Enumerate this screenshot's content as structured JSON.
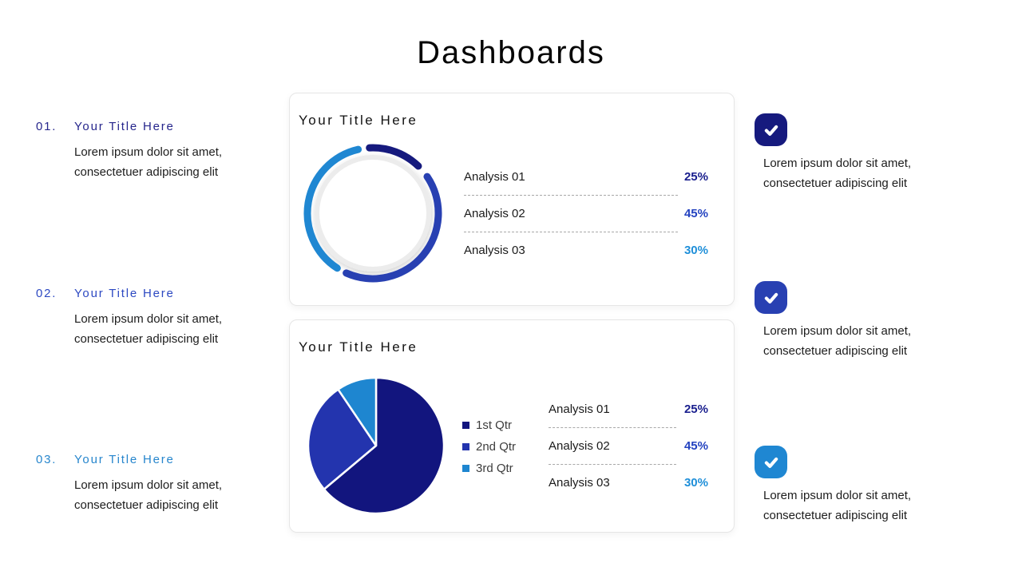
{
  "title": "Dashboards",
  "theme": {
    "navy": "#161a7e",
    "royal": "#2840b2",
    "light_blue": "#1f87d2",
    "body_text": "#1d1d1d",
    "muted_text": "#3d3d3d",
    "card_border": "#e6e6e6",
    "dash_line": "#a8a8a8"
  },
  "left_items": [
    {
      "number": "01.",
      "title": "Your Title Here",
      "color": "#26268c",
      "text": "Lorem ipsum dolor sit amet,\nconsectetuer adipiscing elit"
    },
    {
      "number": "02.",
      "title": "Your Title Here",
      "color": "#2d49c2",
      "text": "Lorem ipsum dolor sit amet,\nconsectetuer adipiscing elit"
    },
    {
      "number": "03.",
      "title": "Your Title Here",
      "color": "#2786cd",
      "text": "Lorem ipsum dolor sit amet,\nconsectetuer adipiscing elit"
    }
  ],
  "cards": [
    {
      "title": "Your Title Here",
      "rows": [
        {
          "label": "Analysis 01",
          "value": "25%",
          "color": "#1a1f8e"
        },
        {
          "label": "Analysis 02",
          "value": "45%",
          "color": "#2443c0"
        },
        {
          "label": "Analysis 03",
          "value": "30%",
          "color": "#1f8fd9"
        }
      ]
    },
    {
      "title": "Your Title Here",
      "rows": [
        {
          "label": "Analysis 01",
          "value": "25%",
          "color": "#1a1f8e"
        },
        {
          "label": "Analysis 02",
          "value": "45%",
          "color": "#2443c0"
        },
        {
          "label": "Analysis 03",
          "value": "30%",
          "color": "#1f8fd9"
        }
      ]
    }
  ],
  "right_items": [
    {
      "icon": "check-icon",
      "badge_color": "#161a7e",
      "text": "Lorem ipsum dolor sit amet,\nconsectetuer adipiscing elit"
    },
    {
      "icon": "check-icon",
      "badge_color": "#2840b2",
      "text": "Lorem ipsum dolor sit amet,\nconsectetuer adipiscing elit"
    },
    {
      "icon": "check-icon",
      "badge_color": "#1f87d2",
      "text": "Lorem ipsum dolor sit amet,\nconsectetuer adipiscing elit"
    }
  ],
  "chart_data": [
    {
      "type": "donut",
      "title": "Your Title Here",
      "legend_position": "none",
      "ring_radius": 82,
      "ring_thickness": 9,
      "segments": [
        {
          "label": "Analysis 01",
          "value_pct": 25,
          "color": "#161a7e",
          "arc_deg": [
            -3,
            44
          ]
        },
        {
          "label": "Analysis 02",
          "value_pct": 45,
          "color": "#2840b2",
          "arc_deg": [
            56,
            204
          ]
        },
        {
          "label": "Analysis 03",
          "value_pct": 30,
          "color": "#1f87d2",
          "arc_deg": [
            213,
            347
          ]
        }
      ]
    },
    {
      "type": "pie",
      "title": "Your Title Here",
      "legend_position": "right",
      "radius": 85,
      "slices": [
        {
          "label": "1st Qtr",
          "pct_est": 64,
          "color": "#12157e",
          "angle_deg": [
            0,
            230
          ]
        },
        {
          "label": "2nd Qtr",
          "pct_est": 27,
          "color": "#2334ae",
          "angle_deg": [
            230,
            326
          ]
        },
        {
          "label": "3rd Qtr",
          "pct_est": 9,
          "color": "#1e86d0",
          "angle_deg": [
            326,
            360
          ]
        }
      ]
    }
  ]
}
